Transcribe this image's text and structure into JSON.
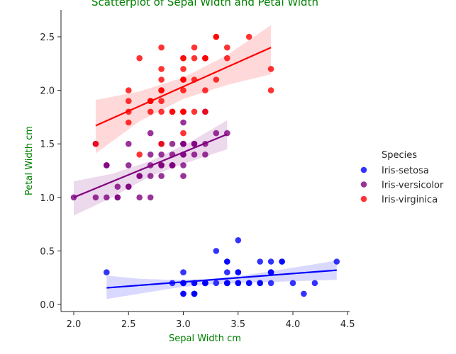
{
  "chart_data": {
    "type": "scatter",
    "title": "Scatterplot of Sepal Width and Petal Width",
    "xlabel": "Sepal Width cm",
    "ylabel": "Petal Width cm",
    "xlim": [
      1.87,
      4.53
    ],
    "ylim": [
      -0.07,
      2.75
    ],
    "x_ticks": [
      "2.0",
      "2.5",
      "3.0",
      "3.5",
      "4.0",
      "4.5"
    ],
    "y_ticks": [
      "0.0",
      "0.5",
      "1.0",
      "1.5",
      "2.0",
      "2.5"
    ],
    "grid": false,
    "legend": {
      "title": "Species",
      "placement": "right"
    },
    "series": [
      {
        "name": "Iris-setosa",
        "color": "#0000ff",
        "points": [
          [
            3.5,
            0.2
          ],
          [
            3.0,
            0.2
          ],
          [
            3.2,
            0.2
          ],
          [
            3.1,
            0.2
          ],
          [
            3.6,
            0.2
          ],
          [
            3.9,
            0.4
          ],
          [
            3.4,
            0.3
          ],
          [
            3.4,
            0.2
          ],
          [
            2.9,
            0.2
          ],
          [
            3.1,
            0.1
          ],
          [
            3.7,
            0.2
          ],
          [
            3.4,
            0.2
          ],
          [
            3.0,
            0.1
          ],
          [
            3.0,
            0.1
          ],
          [
            4.0,
            0.2
          ],
          [
            4.4,
            0.4
          ],
          [
            3.9,
            0.4
          ],
          [
            3.5,
            0.3
          ],
          [
            3.8,
            0.3
          ],
          [
            3.8,
            0.3
          ],
          [
            3.4,
            0.2
          ],
          [
            3.7,
            0.4
          ],
          [
            3.6,
            0.2
          ],
          [
            3.3,
            0.5
          ],
          [
            3.4,
            0.2
          ],
          [
            3.0,
            0.2
          ],
          [
            3.4,
            0.4
          ],
          [
            3.5,
            0.2
          ],
          [
            3.4,
            0.2
          ],
          [
            3.2,
            0.2
          ],
          [
            3.1,
            0.2
          ],
          [
            3.4,
            0.4
          ],
          [
            4.1,
            0.1
          ],
          [
            4.2,
            0.2
          ],
          [
            3.1,
            0.1
          ],
          [
            3.2,
            0.2
          ],
          [
            3.5,
            0.2
          ],
          [
            3.1,
            0.1
          ],
          [
            3.0,
            0.2
          ],
          [
            3.4,
            0.2
          ],
          [
            3.5,
            0.3
          ],
          [
            2.3,
            0.3
          ],
          [
            3.2,
            0.2
          ],
          [
            3.5,
            0.6
          ],
          [
            3.8,
            0.4
          ],
          [
            3.0,
            0.3
          ],
          [
            3.8,
            0.2
          ],
          [
            3.2,
            0.2
          ],
          [
            3.7,
            0.2
          ],
          [
            3.3,
            0.2
          ]
        ],
        "fit": {
          "x": [
            2.3,
            4.4
          ],
          "y": [
            0.155,
            0.32
          ]
        },
        "band": {
          "x": [
            2.3,
            2.6,
            2.9,
            3.2,
            3.5,
            3.8,
            4.1,
            4.4
          ],
          "upper": [
            0.27,
            0.24,
            0.23,
            0.235,
            0.265,
            0.31,
            0.36,
            0.41
          ],
          "lower": [
            0.05,
            0.1,
            0.15,
            0.185,
            0.2,
            0.21,
            0.22,
            0.23
          ]
        }
      },
      {
        "name": "Iris-versicolor",
        "color": "#800080",
        "points": [
          [
            3.2,
            1.4
          ],
          [
            3.2,
            1.5
          ],
          [
            3.1,
            1.5
          ],
          [
            2.3,
            1.3
          ],
          [
            2.8,
            1.5
          ],
          [
            2.8,
            1.3
          ],
          [
            3.3,
            1.6
          ],
          [
            2.4,
            1.0
          ],
          [
            2.9,
            1.3
          ],
          [
            2.7,
            1.4
          ],
          [
            2.0,
            1.0
          ],
          [
            3.0,
            1.5
          ],
          [
            2.2,
            1.0
          ],
          [
            2.9,
            1.4
          ],
          [
            2.9,
            1.3
          ],
          [
            3.1,
            1.4
          ],
          [
            3.0,
            1.5
          ],
          [
            2.7,
            1.0
          ],
          [
            2.2,
            1.5
          ],
          [
            2.5,
            1.1
          ],
          [
            3.2,
            1.8
          ],
          [
            2.8,
            1.3
          ],
          [
            2.5,
            1.5
          ],
          [
            2.8,
            1.2
          ],
          [
            2.9,
            1.3
          ],
          [
            3.0,
            1.4
          ],
          [
            2.8,
            1.4
          ],
          [
            3.0,
            1.7
          ],
          [
            2.9,
            1.5
          ],
          [
            2.6,
            1.0
          ],
          [
            2.4,
            1.1
          ],
          [
            2.4,
            1.0
          ],
          [
            2.7,
            1.2
          ],
          [
            2.7,
            1.6
          ],
          [
            3.0,
            1.5
          ],
          [
            3.4,
            1.6
          ],
          [
            3.1,
            1.5
          ],
          [
            2.3,
            1.3
          ],
          [
            3.0,
            1.3
          ],
          [
            2.5,
            1.3
          ],
          [
            2.6,
            1.2
          ],
          [
            3.0,
            1.4
          ],
          [
            2.6,
            1.2
          ],
          [
            2.3,
            1.0
          ],
          [
            2.7,
            1.3
          ],
          [
            3.0,
            1.2
          ],
          [
            2.9,
            1.3
          ],
          [
            2.9,
            1.3
          ],
          [
            2.5,
            1.1
          ],
          [
            2.8,
            1.3
          ]
        ],
        "fit": {
          "x": [
            2.0,
            3.4
          ],
          "y": [
            1.0,
            1.59
          ]
        },
        "band": {
          "x": [
            2.0,
            2.35,
            2.7,
            3.05,
            3.4
          ],
          "upper": [
            1.15,
            1.22,
            1.34,
            1.51,
            1.72
          ],
          "lower": [
            0.83,
            1.0,
            1.2,
            1.33,
            1.45
          ]
        }
      },
      {
        "name": "Iris-virginica",
        "color": "#ff0000",
        "points": [
          [
            3.3,
            2.5
          ],
          [
            2.7,
            1.9
          ],
          [
            3.0,
            2.1
          ],
          [
            2.9,
            1.8
          ],
          [
            3.0,
            2.2
          ],
          [
            3.0,
            2.1
          ],
          [
            2.5,
            1.7
          ],
          [
            2.9,
            1.8
          ],
          [
            2.5,
            1.8
          ],
          [
            3.6,
            2.5
          ],
          [
            3.2,
            2.0
          ],
          [
            2.7,
            1.9
          ],
          [
            3.0,
            2.1
          ],
          [
            2.5,
            2.0
          ],
          [
            2.8,
            2.4
          ],
          [
            3.2,
            2.3
          ],
          [
            3.0,
            1.8
          ],
          [
            3.8,
            2.2
          ],
          [
            2.6,
            2.3
          ],
          [
            2.2,
            1.5
          ],
          [
            3.2,
            2.3
          ],
          [
            2.8,
            2.0
          ],
          [
            2.8,
            2.0
          ],
          [
            2.7,
            1.8
          ],
          [
            3.3,
            2.1
          ],
          [
            3.2,
            1.8
          ],
          [
            2.8,
            1.8
          ],
          [
            3.0,
            1.8
          ],
          [
            2.8,
            2.1
          ],
          [
            3.0,
            1.6
          ],
          [
            2.8,
            1.9
          ],
          [
            3.8,
            2.0
          ],
          [
            2.8,
            2.2
          ],
          [
            2.8,
            1.5
          ],
          [
            2.6,
            1.4
          ],
          [
            3.0,
            2.3
          ],
          [
            3.4,
            2.4
          ],
          [
            3.1,
            1.8
          ],
          [
            3.0,
            1.8
          ],
          [
            3.1,
            2.1
          ],
          [
            3.1,
            2.4
          ],
          [
            3.1,
            2.3
          ],
          [
            2.7,
            1.9
          ],
          [
            3.2,
            2.3
          ],
          [
            3.3,
            2.5
          ],
          [
            3.0,
            2.3
          ],
          [
            2.5,
            1.9
          ],
          [
            3.0,
            2.0
          ],
          [
            3.4,
            2.3
          ],
          [
            3.0,
            1.8
          ]
        ],
        "fit": {
          "x": [
            2.2,
            3.8
          ],
          "y": [
            1.67,
            2.4
          ]
        },
        "band": {
          "x": [
            2.2,
            2.6,
            3.0,
            3.4,
            3.8
          ],
          "upper": [
            1.91,
            1.99,
            2.12,
            2.33,
            2.61
          ],
          "lower": [
            1.41,
            1.71,
            1.92,
            2.05,
            2.15
          ]
        }
      }
    ]
  }
}
